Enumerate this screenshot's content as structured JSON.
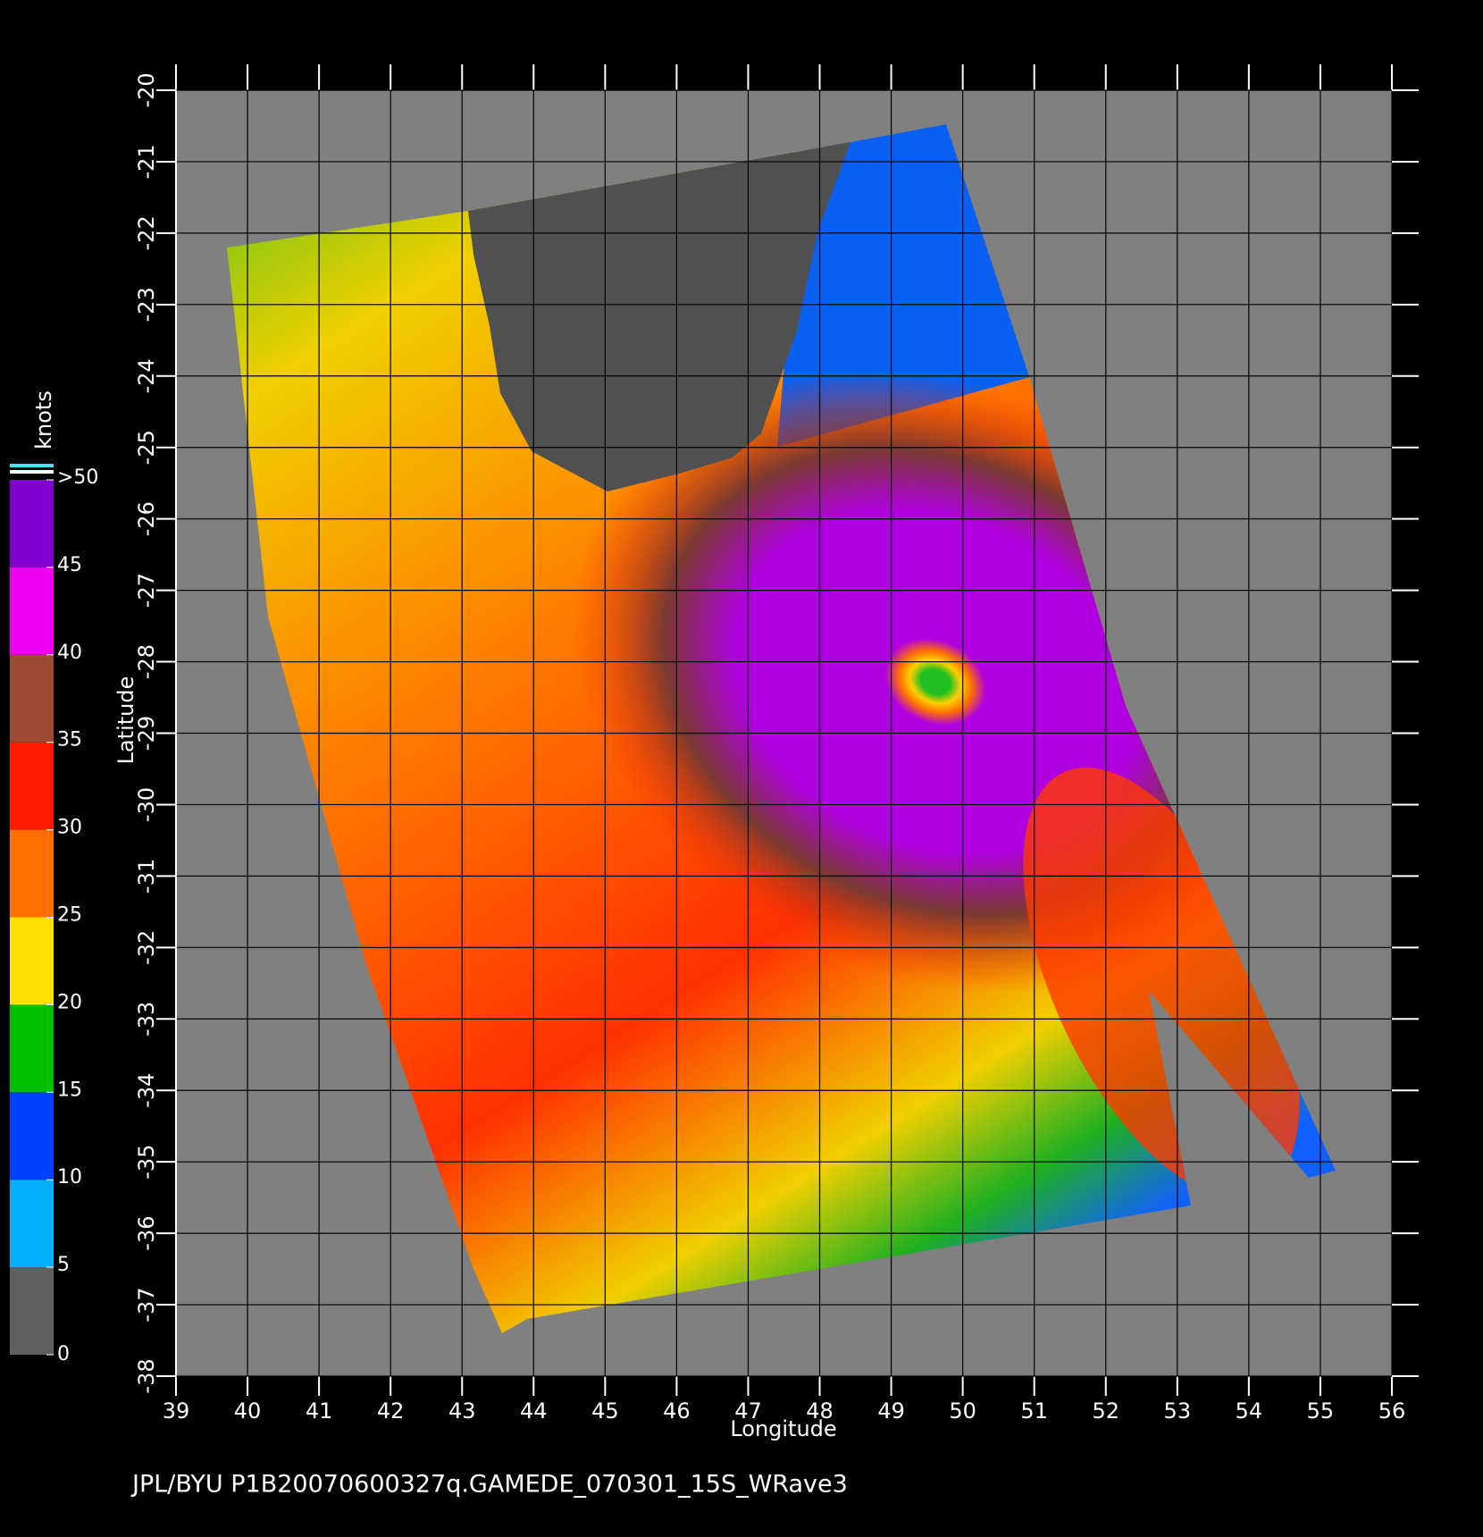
{
  "chart_data": {
    "type": "wind-map",
    "title": "JPL/BYU  P1B20070600327q.GAMEDE_070301_15S_WRave3",
    "xlabel": "Longitude",
    "ylabel": "Latitude",
    "xlim": [
      39,
      56
    ],
    "ylim": [
      -38,
      -20
    ],
    "xticks": [
      39,
      40,
      41,
      42,
      43,
      44,
      45,
      46,
      47,
      48,
      49,
      50,
      51,
      52,
      53,
      54,
      55,
      56
    ],
    "yticks": [
      -20,
      -21,
      -22,
      -23,
      -24,
      -25,
      -26,
      -27,
      -28,
      -29,
      -30,
      -31,
      -32,
      -33,
      -34,
      -35,
      -36,
      -37,
      -38
    ],
    "grid": true,
    "colorbar": {
      "label": "knots",
      "lim": [
        0,
        50
      ],
      "ticks": [
        0,
        5,
        10,
        15,
        20,
        25,
        30,
        35,
        40,
        45,
        {
          "value": 50,
          "label": ">50"
        }
      ],
      "colors": [
        "#606060",
        "#00b0ff",
        "#0040ff",
        "#00c000",
        "#ffe000",
        "#ff7000",
        "#ff1a00",
        "#9a4a30",
        "#ee00ee",
        "#8000d0"
      ]
    }
  }
}
